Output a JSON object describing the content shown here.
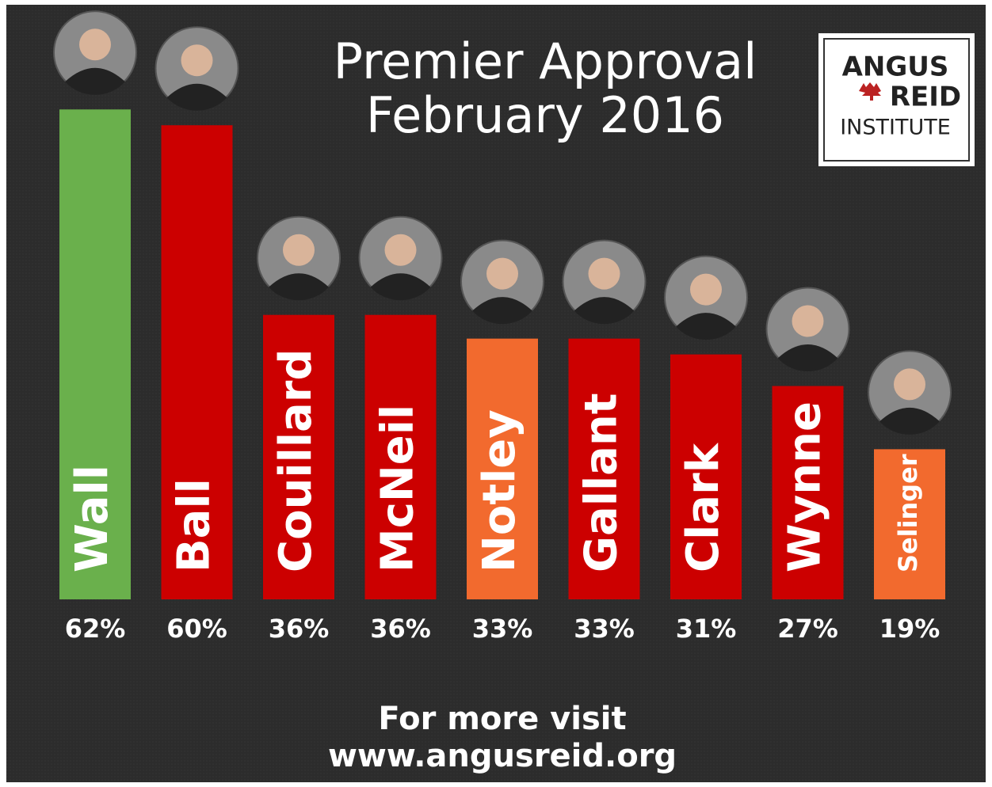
{
  "chart_data": {
    "type": "bar",
    "title": "Premier Approval",
    "subtitle": "February 2016",
    "categories": [
      "Wall",
      "Ball",
      "Couillard",
      "McNeil",
      "Notley",
      "Gallant",
      "Clark",
      "Wynne",
      "Selinger"
    ],
    "values": [
      62,
      60,
      36,
      36,
      33,
      33,
      31,
      27,
      19
    ],
    "value_labels": [
      "62%",
      "60%",
      "36%",
      "36%",
      "33%",
      "33%",
      "31%",
      "27%",
      "19%"
    ],
    "colors": [
      "#6ab04c",
      "#cc0000",
      "#cc0000",
      "#cc0000",
      "#f26a2e",
      "#cc0000",
      "#cc0000",
      "#cc0000",
      "#f26a2e"
    ],
    "logo": [
      "ANGUS",
      "REID",
      "INSTITUTE"
    ],
    "footer": [
      "For more visit",
      "www.angusreid.org"
    ]
  }
}
